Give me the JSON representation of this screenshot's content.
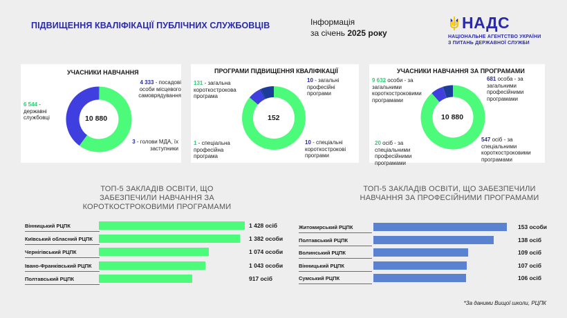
{
  "header": {
    "title": "ПІДВИЩЕННЯ КВАЛІФІКАЦІЇ ПУБЛІЧНИХ СЛУЖБОВЦІВ",
    "info_line1": "Інформація",
    "info_prefix": "за січень ",
    "info_year": "2025 року",
    "logo_text": "НАДС",
    "logo_sub1": "НАЦІОНАЛЬНЕ АГЕНТСТВО УКРАЇНИ",
    "logo_sub2": "З ПИТАНЬ ДЕРЖАВНОЇ СЛУЖБИ"
  },
  "colors": {
    "green": "#4dfb7a",
    "blue": "#3f3fe0",
    "darkblue": "#1c3c9a",
    "barblue": "#5b82d1",
    "title_blue": "#2a2aa8"
  },
  "cards": [
    {
      "title": "УЧАСНИКИ НАВЧАННЯ",
      "center": "10 880",
      "labels": [
        {
          "num": "6 544",
          "text": " - державні службовці"
        },
        {
          "num": "4 333",
          "text": " - посадові особи місцевого самоврядування"
        },
        {
          "num": "3",
          "text": " - голови МДА, їх заступники"
        }
      ]
    },
    {
      "title": "ПРОГРАМИ ПІДВИЩЕННЯ КВАЛІФІКАЦІЇ",
      "center": "152",
      "labels": [
        {
          "num": "131",
          "text": " - загальна короткострокова програма"
        },
        {
          "num": "10",
          "text": " - загальні професійні програми"
        },
        {
          "num": "1",
          "text": " - спеціальна професійна програма"
        },
        {
          "num": "10",
          "text": " - спеціальні короткострокові програми"
        }
      ]
    },
    {
      "title": "УЧАСНИКИ НАВЧАННЯ ЗА ПРОГРАМАМИ",
      "center": "10 880",
      "labels": [
        {
          "num": "9 632",
          "text": " особи - за загальними короткостроковими програмами"
        },
        {
          "num": "681",
          "text": " особа - за загальними професійними програмами"
        },
        {
          "num": "20",
          "text": " осіб - за спеціальними професійними програмами"
        },
        {
          "num": "547",
          "text": " осіб - за спеціальними короткостроковими програмами"
        }
      ]
    }
  ],
  "chart_data": [
    {
      "type": "pie",
      "title": "УЧАСНИКИ НАВЧАННЯ",
      "categories": [
        "державні службовці",
        "посадові особи місцевого самоврядування",
        "голови МДА, їх заступники"
      ],
      "values": [
        6544,
        4333,
        3
      ],
      "colors": [
        "#4dfb7a",
        "#3f3fe0",
        "#1c3c9a"
      ]
    },
    {
      "type": "pie",
      "title": "ПРОГРАМИ ПІДВИЩЕННЯ КВАЛІФІКАЦІЇ",
      "categories": [
        "загальна короткострокова програма",
        "загальні професійні програми",
        "спеціальна професійна програма",
        "спеціальні короткострокові програми"
      ],
      "values": [
        131,
        10,
        1,
        10
      ],
      "colors": [
        "#4dfb7a",
        "#3f3fe0",
        "#1c3c9a",
        "#1c3c9a"
      ]
    },
    {
      "type": "pie",
      "title": "УЧАСНИКИ НАВЧАННЯ ЗА ПРОГРАМАМИ",
      "categories": [
        "за загальними короткостроковими програмами",
        "за загальними професійними програмами",
        "за спеціальними професійними програмами",
        "за спеціальними короткостроковими програмами"
      ],
      "values": [
        9632,
        681,
        20,
        547
      ],
      "colors": [
        "#4dfb7a",
        "#3f3fe0",
        "#1c3c9a",
        "#1c3c9a"
      ]
    },
    {
      "type": "bar",
      "title": "ТОП-5 ЗАКЛАДІВ ОСВІТИ, ЩО ЗАБЕЗПЕЧИЛИ НАВЧАННЯ ЗА КОРОТКОСТРОКОВИМИ ПРОГРАМАМИ",
      "categories": [
        "Вінницький РЦПК",
        "Київський обласний РЦПК",
        "Чернігівський РЦПК",
        "Івано-Франківський РЦПК",
        "Полтавський  РЦПК"
      ],
      "values": [
        1428,
        1382,
        1074,
        1043,
        917
      ],
      "value_labels": [
        "1 428 осіб",
        "1 382 особи",
        "1 074 особи",
        "1 043 особи",
        "917 осіб"
      ],
      "color": "#4dfb7a"
    },
    {
      "type": "bar",
      "title": "ТОП-5 ЗАКЛАДІВ ОСВІТИ, ЩО ЗАБЕЗПЕЧИЛИ НАВЧАННЯ ЗА ПРОФЕСІЙНИМИ ПРОГРАМАМИ",
      "categories": [
        "Житомирський РЦПК",
        "Полтавський РЦПК",
        "Волинський РЦПК",
        "Вінницький РЦПК",
        "Сумський РЦПК"
      ],
      "values": [
        153,
        138,
        109,
        107,
        106
      ],
      "value_labels": [
        "153 особи",
        "138 осіб",
        "109 осіб",
        "107 осіб",
        "106 осіб"
      ],
      "color": "#5b82d1"
    }
  ],
  "footnote": "*За даними Вищої школи, РЦПК"
}
